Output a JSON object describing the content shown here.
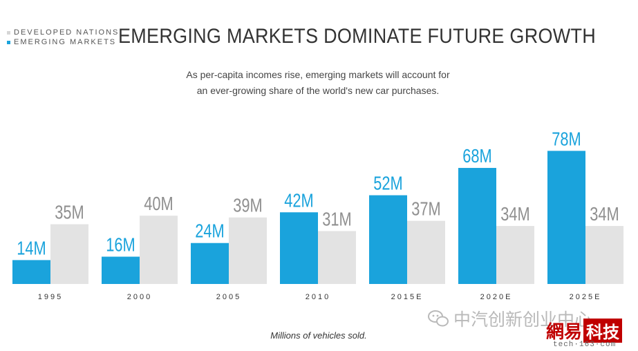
{
  "header": {
    "title": "EMERGING MARKETS DOMINATE FUTURE GROWTH",
    "subtitle_line1": "As per-capita incomes rise, emerging markets will account for",
    "subtitle_line2": "an ever-growing share of the world's new car purchases."
  },
  "legend": {
    "items": [
      {
        "label": "DEVELOPED NATIONS",
        "color": "#d6d6d6"
      },
      {
        "label": "EMERGING MARKETS",
        "color": "#1aa3dc"
      }
    ]
  },
  "caption": "Millions of vehicles sold.",
  "watermark": {
    "text": "中汽创新创业中心"
  },
  "logo": {
    "part1": "網易",
    "part2": "科技",
    "sub": "tech·163·com"
  },
  "chart_data": {
    "type": "bar",
    "categories": [
      "1995",
      "2000",
      "2005",
      "2010",
      "2015E",
      "2020E",
      "2025E"
    ],
    "series": [
      {
        "name": "EMERGING MARKETS",
        "color": "#1aa3dc",
        "label_color": "#1aa3dc",
        "values": [
          14,
          16,
          24,
          42,
          52,
          68,
          78
        ],
        "labels": [
          "14M",
          "16M",
          "24M",
          "42M",
          "52M",
          "68M",
          "78M"
        ]
      },
      {
        "name": "DEVELOPED NATIONS",
        "color": "#e3e3e3",
        "label_color": "#8f8f8f",
        "values": [
          35,
          40,
          39,
          31,
          37,
          34,
          34
        ],
        "labels": [
          "35M",
          "40M",
          "39M",
          "31M",
          "37M",
          "34M",
          "34M"
        ]
      }
    ],
    "title": "EMERGING MARKETS DOMINATE FUTURE GROWTH",
    "xlabel": "",
    "ylabel": "",
    "grid": false,
    "legend_position": "top-left"
  }
}
